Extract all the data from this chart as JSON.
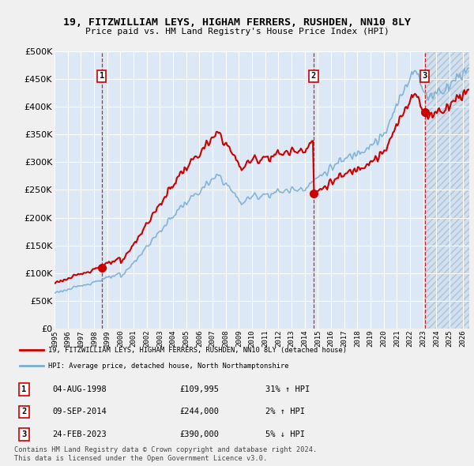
{
  "title": "19, FITZWILLIAM LEYS, HIGHAM FERRERS, RUSHDEN, NN10 8LY",
  "subtitle": "Price paid vs. HM Land Registry's House Price Index (HPI)",
  "legend_line1": "19, FITZWILLIAM LEYS, HIGHAM FERRERS, RUSHDEN, NN10 8LY (detached house)",
  "legend_line2": "HPI: Average price, detached house, North Northamptonshire",
  "sales": [
    {
      "num": 1,
      "date": "04-AUG-1998",
      "price": 109995,
      "pct": "31% ↑ HPI",
      "year": 1998.583
    },
    {
      "num": 2,
      "date": "09-SEP-2014",
      "price": 244000,
      "pct": "2% ↑ HPI",
      "year": 2014.667
    },
    {
      "num": 3,
      "date": "24-FEB-2023",
      "price": 390000,
      "pct": "5% ↓ HPI",
      "year": 2023.125
    }
  ],
  "footer": "Contains HM Land Registry data © Crown copyright and database right 2024.\nThis data is licensed under the Open Government Licence v3.0.",
  "red_color": "#cc0000",
  "blue_color": "#7aaed4",
  "plot_bg": "#dce8f5",
  "grid_color": "#ffffff",
  "ylim": [
    0,
    500000
  ],
  "yticks": [
    0,
    50000,
    100000,
    150000,
    200000,
    250000,
    300000,
    350000,
    400000,
    450000,
    500000
  ],
  "xmin": 1995,
  "xmax": 2026.5
}
